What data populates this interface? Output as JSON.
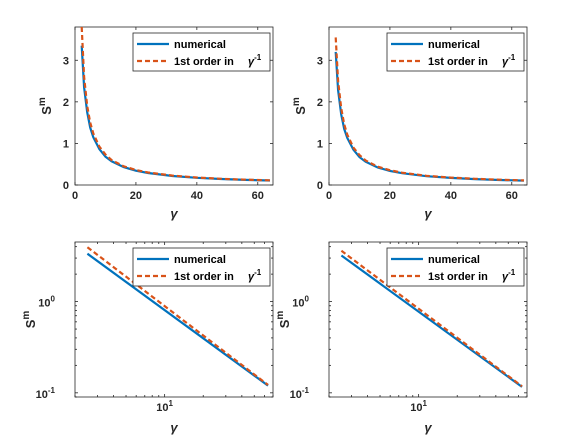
{
  "colors": {
    "numerical": "#0072bd",
    "first_order": "#d95319",
    "axes": "#262626"
  },
  "chart_data": [
    {
      "type": "line",
      "xlabel": "γ",
      "ylabel": "S",
      "ylabel_sup": "m",
      "xscale": "linear",
      "yscale": "linear",
      "xlim": [
        0,
        65
      ],
      "ylim": [
        0,
        3.8
      ],
      "xticks": [
        0,
        20,
        40,
        60
      ],
      "xtick_labels": [
        "0",
        "20",
        "40",
        "60"
      ],
      "yticks": [
        0,
        1,
        2,
        3
      ],
      "ytick_labels": [
        "0",
        "1",
        "2",
        "3"
      ],
      "legend_position": "top-right",
      "series": [
        {
          "name": "numerical",
          "style": "solid",
          "x": [
            2.2,
            3,
            4,
            5,
            6,
            8,
            10,
            12,
            16,
            20,
            24,
            32,
            40,
            48,
            56,
            64
          ],
          "y": [
            3.35,
            2.35,
            1.75,
            1.38,
            1.15,
            0.86,
            0.68,
            0.57,
            0.43,
            0.345,
            0.288,
            0.216,
            0.173,
            0.144,
            0.123,
            0.108
          ]
        },
        {
          "name": "1st order in",
          "name_suffix": "γ",
          "name_suffix_sup": "-1",
          "style": "dashed",
          "x": [
            2.2,
            3,
            4,
            5,
            6,
            8,
            10,
            12,
            16,
            20,
            24,
            32,
            40,
            48,
            56,
            64
          ],
          "y": [
            3.8,
            2.6,
            1.9,
            1.5,
            1.24,
            0.92,
            0.73,
            0.6,
            0.45,
            0.36,
            0.3,
            0.225,
            0.18,
            0.15,
            0.128,
            0.112
          ]
        }
      ]
    },
    {
      "type": "line",
      "xlabel": "γ",
      "ylabel": "S",
      "ylabel_sup": "m",
      "xscale": "linear",
      "yscale": "linear",
      "xlim": [
        0,
        65
      ],
      "ylim": [
        0,
        3.8
      ],
      "xticks": [
        0,
        20,
        40,
        60
      ],
      "xtick_labels": [
        "0",
        "20",
        "40",
        "60"
      ],
      "yticks": [
        0,
        1,
        2,
        3
      ],
      "ytick_labels": [
        "0",
        "1",
        "2",
        "3"
      ],
      "legend_position": "top-right",
      "series": [
        {
          "name": "numerical",
          "style": "solid",
          "x": [
            2.2,
            3,
            4,
            5,
            6,
            8,
            10,
            12,
            16,
            20,
            24,
            32,
            40,
            48,
            56,
            64
          ],
          "y": [
            3.2,
            2.28,
            1.7,
            1.35,
            1.13,
            0.85,
            0.67,
            0.56,
            0.42,
            0.34,
            0.283,
            0.212,
            0.17,
            0.141,
            0.121,
            0.106
          ]
        },
        {
          "name": "1st order in",
          "name_suffix": "γ",
          "name_suffix_sup": "-1",
          "style": "dashed",
          "x": [
            2.2,
            3,
            4,
            5,
            6,
            8,
            10,
            12,
            16,
            20,
            24,
            32,
            40,
            48,
            56,
            64
          ],
          "y": [
            3.55,
            2.5,
            1.85,
            1.46,
            1.21,
            0.9,
            0.72,
            0.59,
            0.44,
            0.355,
            0.295,
            0.222,
            0.177,
            0.148,
            0.127,
            0.111
          ]
        }
      ]
    },
    {
      "type": "line",
      "xlabel": "γ",
      "ylabel": "S",
      "ylabel_sup": "m",
      "xscale": "log",
      "yscale": "log",
      "xlim": [
        2,
        70
      ],
      "ylim": [
        0.09,
        4.5
      ],
      "xticks": [
        10
      ],
      "xtick_labels": [
        {
          "base": "10",
          "exp": "1"
        }
      ],
      "yticks": [
        0.1,
        1
      ],
      "ytick_labels": [
        {
          "base": "10",
          "exp": "-1"
        },
        {
          "base": "10",
          "exp": "0"
        }
      ],
      "legend_position": "top-right",
      "series": [
        {
          "name": "numerical",
          "style": "solid",
          "x": [
            2.5,
            64
          ],
          "y": [
            3.35,
            0.12
          ]
        },
        {
          "name": "1st order in",
          "name_suffix": "γ",
          "name_suffix_sup": "-1",
          "style": "dashed",
          "x": [
            2.5,
            64
          ],
          "y": [
            3.95,
            0.122
          ]
        }
      ]
    },
    {
      "type": "line",
      "xlabel": "γ",
      "ylabel": "S",
      "ylabel_sup": "m",
      "xscale": "log",
      "yscale": "log",
      "xlim": [
        2,
        70
      ],
      "ylim": [
        0.09,
        4.5
      ],
      "xticks": [
        10
      ],
      "xtick_labels": [
        {
          "base": "10",
          "exp": "1"
        }
      ],
      "yticks": [
        0.1,
        1
      ],
      "ytick_labels": [
        {
          "base": "10",
          "exp": "-1"
        },
        {
          "base": "10",
          "exp": "0"
        }
      ],
      "legend_position": "top-right",
      "series": [
        {
          "name": "numerical",
          "style": "solid",
          "x": [
            2.5,
            64
          ],
          "y": [
            3.2,
            0.116
          ]
        },
        {
          "name": "1st order in",
          "name_suffix": "γ",
          "name_suffix_sup": "-1",
          "style": "dashed",
          "x": [
            2.5,
            64
          ],
          "y": [
            3.6,
            0.118
          ]
        }
      ]
    }
  ]
}
